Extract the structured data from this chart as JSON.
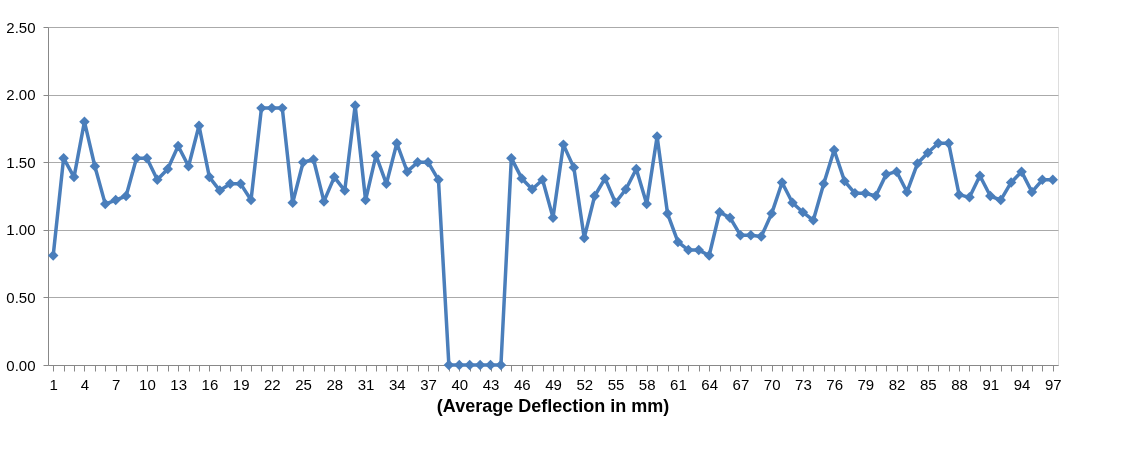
{
  "chart_data": {
    "type": "line",
    "title": "(Average Deflection in mm)",
    "categories": [
      "1",
      null,
      null,
      "4",
      null,
      null,
      "7",
      null,
      null,
      "10",
      null,
      null,
      "13",
      null,
      null,
      "16",
      null,
      null,
      "19",
      null,
      null,
      "22",
      null,
      null,
      "25",
      null,
      null,
      "28",
      null,
      null,
      "31",
      null,
      null,
      "34",
      null,
      null,
      "37",
      null,
      null,
      "40",
      null,
      null,
      "43",
      null,
      null,
      "46",
      null,
      null,
      "49",
      null,
      null,
      "52",
      null,
      null,
      "55",
      null,
      null,
      "58",
      null,
      null,
      "61",
      null,
      null,
      "64",
      null,
      null,
      "67",
      null,
      null,
      "70",
      null,
      null,
      "73",
      null,
      null,
      "76",
      null,
      null,
      "79",
      null,
      null,
      "82",
      null,
      null,
      "85",
      null,
      null,
      "88",
      null,
      null,
      "91",
      null,
      null,
      "94",
      null,
      null,
      "97"
    ],
    "series": [
      {
        "color": "#4a7ebb",
        "values": [
          0.81,
          1.53,
          1.39,
          1.8,
          1.47,
          1.19,
          1.22,
          1.25,
          1.53,
          1.53,
          1.37,
          1.45,
          1.62,
          1.47,
          1.77,
          1.39,
          1.29,
          1.34,
          1.34,
          1.22,
          1.9,
          1.9,
          1.9,
          1.2,
          1.5,
          1.52,
          1.21,
          1.39,
          1.29,
          1.92,
          1.22,
          1.55,
          1.34,
          1.64,
          1.43,
          1.5,
          1.5,
          1.37,
          0,
          0,
          0,
          0,
          0,
          0,
          1.53,
          1.38,
          1.3,
          1.37,
          1.09,
          1.63,
          1.46,
          0.94,
          1.25,
          1.38,
          1.2,
          1.3,
          1.45,
          1.19,
          1.69,
          1.12,
          0.91,
          0.85,
          0.85,
          0.81,
          1.13,
          1.09,
          0.96,
          0.96,
          0.95,
          1.12,
          1.35,
          1.2,
          1.13,
          1.07,
          1.34,
          1.59,
          1.36,
          1.27,
          1.27,
          1.25,
          1.41,
          1.43,
          1.28,
          1.49,
          1.57,
          1.64,
          1.64,
          1.26,
          1.24,
          1.4,
          1.25,
          1.22,
          1.35,
          1.43,
          1.28,
          1.37,
          1.37
        ]
      }
    ],
    "ylim": [
      0,
      2.5
    ],
    "yticks": [
      {
        "value": 0,
        "label": "0.00"
      },
      {
        "value": 0.5,
        "label": "0.50"
      },
      {
        "value": 1,
        "label": "1.00"
      },
      {
        "value": 1.5,
        "label": "1.50"
      },
      {
        "value": 2,
        "label": "2.00"
      },
      {
        "value": 2.5,
        "label": "2.50"
      }
    ],
    "grid": "y",
    "marker": "diamond",
    "line_style": "solid"
  }
}
